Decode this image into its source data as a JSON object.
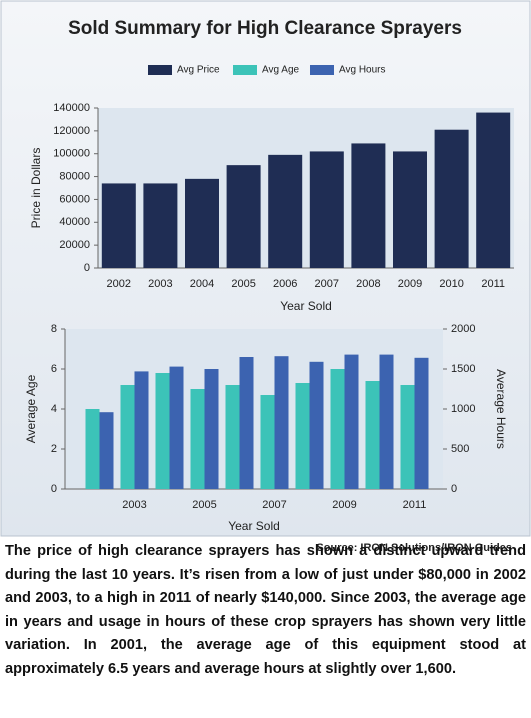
{
  "chart_data": [
    {
      "type": "bar",
      "title": "Sold Summary for High Clearance Sprayers",
      "xlabel": "Year Sold",
      "ylabel": "Price in Dollars",
      "categories": [
        "2002",
        "2003",
        "2004",
        "2005",
        "2006",
        "2007",
        "2008",
        "2009",
        "2010",
        "2011"
      ],
      "series": [
        {
          "name": "Avg Price",
          "color": "#1f2d54",
          "values": [
            74000,
            74000,
            78000,
            90000,
            99000,
            102000,
            109000,
            102000,
            121000,
            136000
          ]
        }
      ],
      "ylim": [
        0,
        140000
      ],
      "yticks": [
        0,
        20000,
        40000,
        60000,
        80000,
        100000,
        120000,
        140000
      ]
    },
    {
      "type": "bar",
      "xlabel": "Year Sold",
      "ylabel": "Average Age",
      "y2label": "Average Hours",
      "categories": [
        null,
        "2003",
        null,
        "2005",
        null,
        "2007",
        null,
        "2009",
        null,
        "2011"
      ],
      "series": [
        {
          "name": "Avg Age",
          "color": "#3cc3b8",
          "values": [
            4.0,
            5.2,
            5.8,
            5.0,
            5.2,
            4.7,
            5.3,
            6.0,
            5.4,
            5.2
          ]
        },
        {
          "name": "Avg Hours",
          "color": "#3c63b0",
          "axis": "y2",
          "values": [
            960,
            1470,
            1530,
            1500,
            1650,
            1660,
            1590,
            1680,
            1680,
            1640
          ]
        }
      ],
      "ylim": [
        0,
        8
      ],
      "yticks": [
        0,
        2,
        4,
        6,
        8
      ],
      "y2lim": [
        0,
        2000
      ],
      "y2ticks": [
        0,
        500,
        1000,
        1500,
        2000
      ]
    }
  ],
  "source": "Source: IRON Solutions/IRON Guides",
  "caption": "The price of high clearance sprayers has shown a distinct upward trend during the last 10 years. It’s risen from a low of just under $80,000 in 2002 and 2003, to a high in 2011 of nearly $140,000. Since 2003, the average age in years and usage in hours of these crop sprayers has shown very little variation. In 2001, the average age of this equipment stood at approximately 6.5 years and average hours at slightly over 1,600."
}
